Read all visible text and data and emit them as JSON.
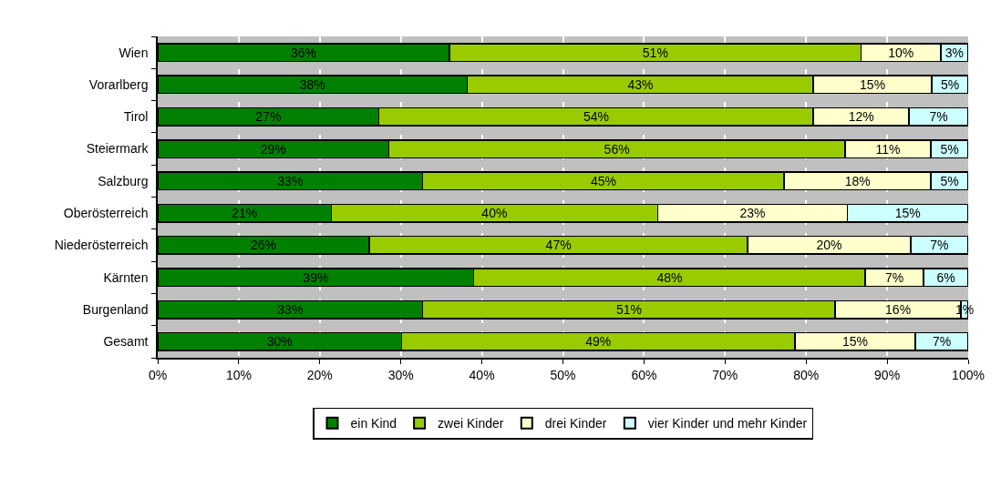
{
  "chart_data": {
    "type": "bar",
    "orientation": "horizontal",
    "stacked": true,
    "categories": [
      "Wien",
      "Vorarlberg",
      "Tirol",
      "Steiermark",
      "Salzburg",
      "Oberösterreich",
      "Niederösterreich",
      "Kärnten",
      "Burgenland",
      "Gesamt"
    ],
    "series": [
      {
        "name": "ein Kind",
        "color": "#008000",
        "values": [
          36.0,
          38.2,
          27.3,
          28.5,
          32.7,
          21.4,
          26.1,
          39.0,
          32.7,
          30.1
        ],
        "value_labels": [
          "36%",
          "38%",
          "27%",
          "29%",
          "33%",
          "21%",
          "26%",
          "39%",
          "33%",
          "30%"
        ]
      },
      {
        "name": "zwei Kinder",
        "color": "#99cc00",
        "values": [
          50.8,
          42.7,
          53.6,
          56.3,
          44.6,
          40.3,
          46.7,
          48.3,
          50.9,
          48.5
        ],
        "value_labels": [
          "51%",
          "43%",
          "54%",
          "56%",
          "45%",
          "40%",
          "47%",
          "48%",
          "51%",
          "49%"
        ]
      },
      {
        "name": "drei Kinder",
        "color": "#ffffcc",
        "values": [
          9.8,
          14.6,
          11.8,
          10.6,
          18.1,
          23.4,
          20.1,
          7.2,
          15.5,
          14.9
        ],
        "value_labels": [
          "10%",
          "15%",
          "12%",
          "11%",
          "18%",
          "23%",
          "20%",
          "7%",
          "16%",
          "15%"
        ]
      },
      {
        "name": "vier Kinder und mehr Kinder",
        "color": "#ccffff",
        "values": [
          3.4,
          4.5,
          7.3,
          4.6,
          4.6,
          14.9,
          7.1,
          5.5,
          0.9,
          6.5
        ],
        "value_labels": [
          "3%",
          "5%",
          "7%",
          "5%",
          "5%",
          "15%",
          "7%",
          "6%",
          "1%",
          "7%"
        ]
      }
    ],
    "xlim": [
      0,
      100
    ],
    "xticks": [
      {
        "value": 0,
        "label": "0%"
      },
      {
        "value": 10,
        "label": "10%"
      },
      {
        "value": 20,
        "label": "20%"
      },
      {
        "value": 30,
        "label": "30%"
      },
      {
        "value": 40,
        "label": "40%"
      },
      {
        "value": 50,
        "label": "50%"
      },
      {
        "value": 60,
        "label": "60%"
      },
      {
        "value": 70,
        "label": "70%"
      },
      {
        "value": 80,
        "label": "80%"
      },
      {
        "value": 90,
        "label": "90%"
      },
      {
        "value": 100,
        "label": "100%"
      }
    ],
    "grid": "x",
    "legend": "bottom"
  }
}
